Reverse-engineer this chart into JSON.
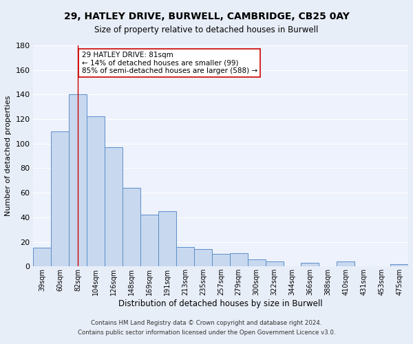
{
  "title1": "29, HATLEY DRIVE, BURWELL, CAMBRIDGE, CB25 0AY",
  "title2": "Size of property relative to detached houses in Burwell",
  "xlabel": "Distribution of detached houses by size in Burwell",
  "ylabel": "Number of detached properties",
  "categories": [
    "39sqm",
    "60sqm",
    "82sqm",
    "104sqm",
    "126sqm",
    "148sqm",
    "169sqm",
    "191sqm",
    "213sqm",
    "235sqm",
    "257sqm",
    "279sqm",
    "300sqm",
    "322sqm",
    "344sqm",
    "366sqm",
    "388sqm",
    "410sqm",
    "431sqm",
    "453sqm",
    "475sqm"
  ],
  "values": [
    15,
    110,
    140,
    122,
    97,
    64,
    42,
    45,
    16,
    14,
    10,
    11,
    6,
    4,
    0,
    3,
    0,
    4,
    0,
    0,
    2
  ],
  "bar_color": "#c8d8ef",
  "bar_edge_color": "#5b8fc9",
  "vline_x": 2,
  "vline_color": "#cc0000",
  "ylim": [
    0,
    180
  ],
  "yticks": [
    0,
    20,
    40,
    60,
    80,
    100,
    120,
    140,
    160,
    180
  ],
  "annotation_text": "29 HATLEY DRIVE: 81sqm\n← 14% of detached houses are smaller (99)\n85% of semi-detached houses are larger (588) →",
  "annotation_box_color": "#ffffff",
  "annotation_box_edge_color": "#cc0000",
  "footer1": "Contains HM Land Registry data © Crown copyright and database right 2024.",
  "footer2": "Contains public sector information licensed under the Open Government Licence v3.0.",
  "bg_color": "#e8eef8",
  "plot_bg_color": "#eef2fc",
  "grid_color": "#ffffff",
  "title1_fontsize": 10,
  "title2_fontsize": 8.5,
  "ylabel_fontsize": 8,
  "xlabel_fontsize": 8.5
}
